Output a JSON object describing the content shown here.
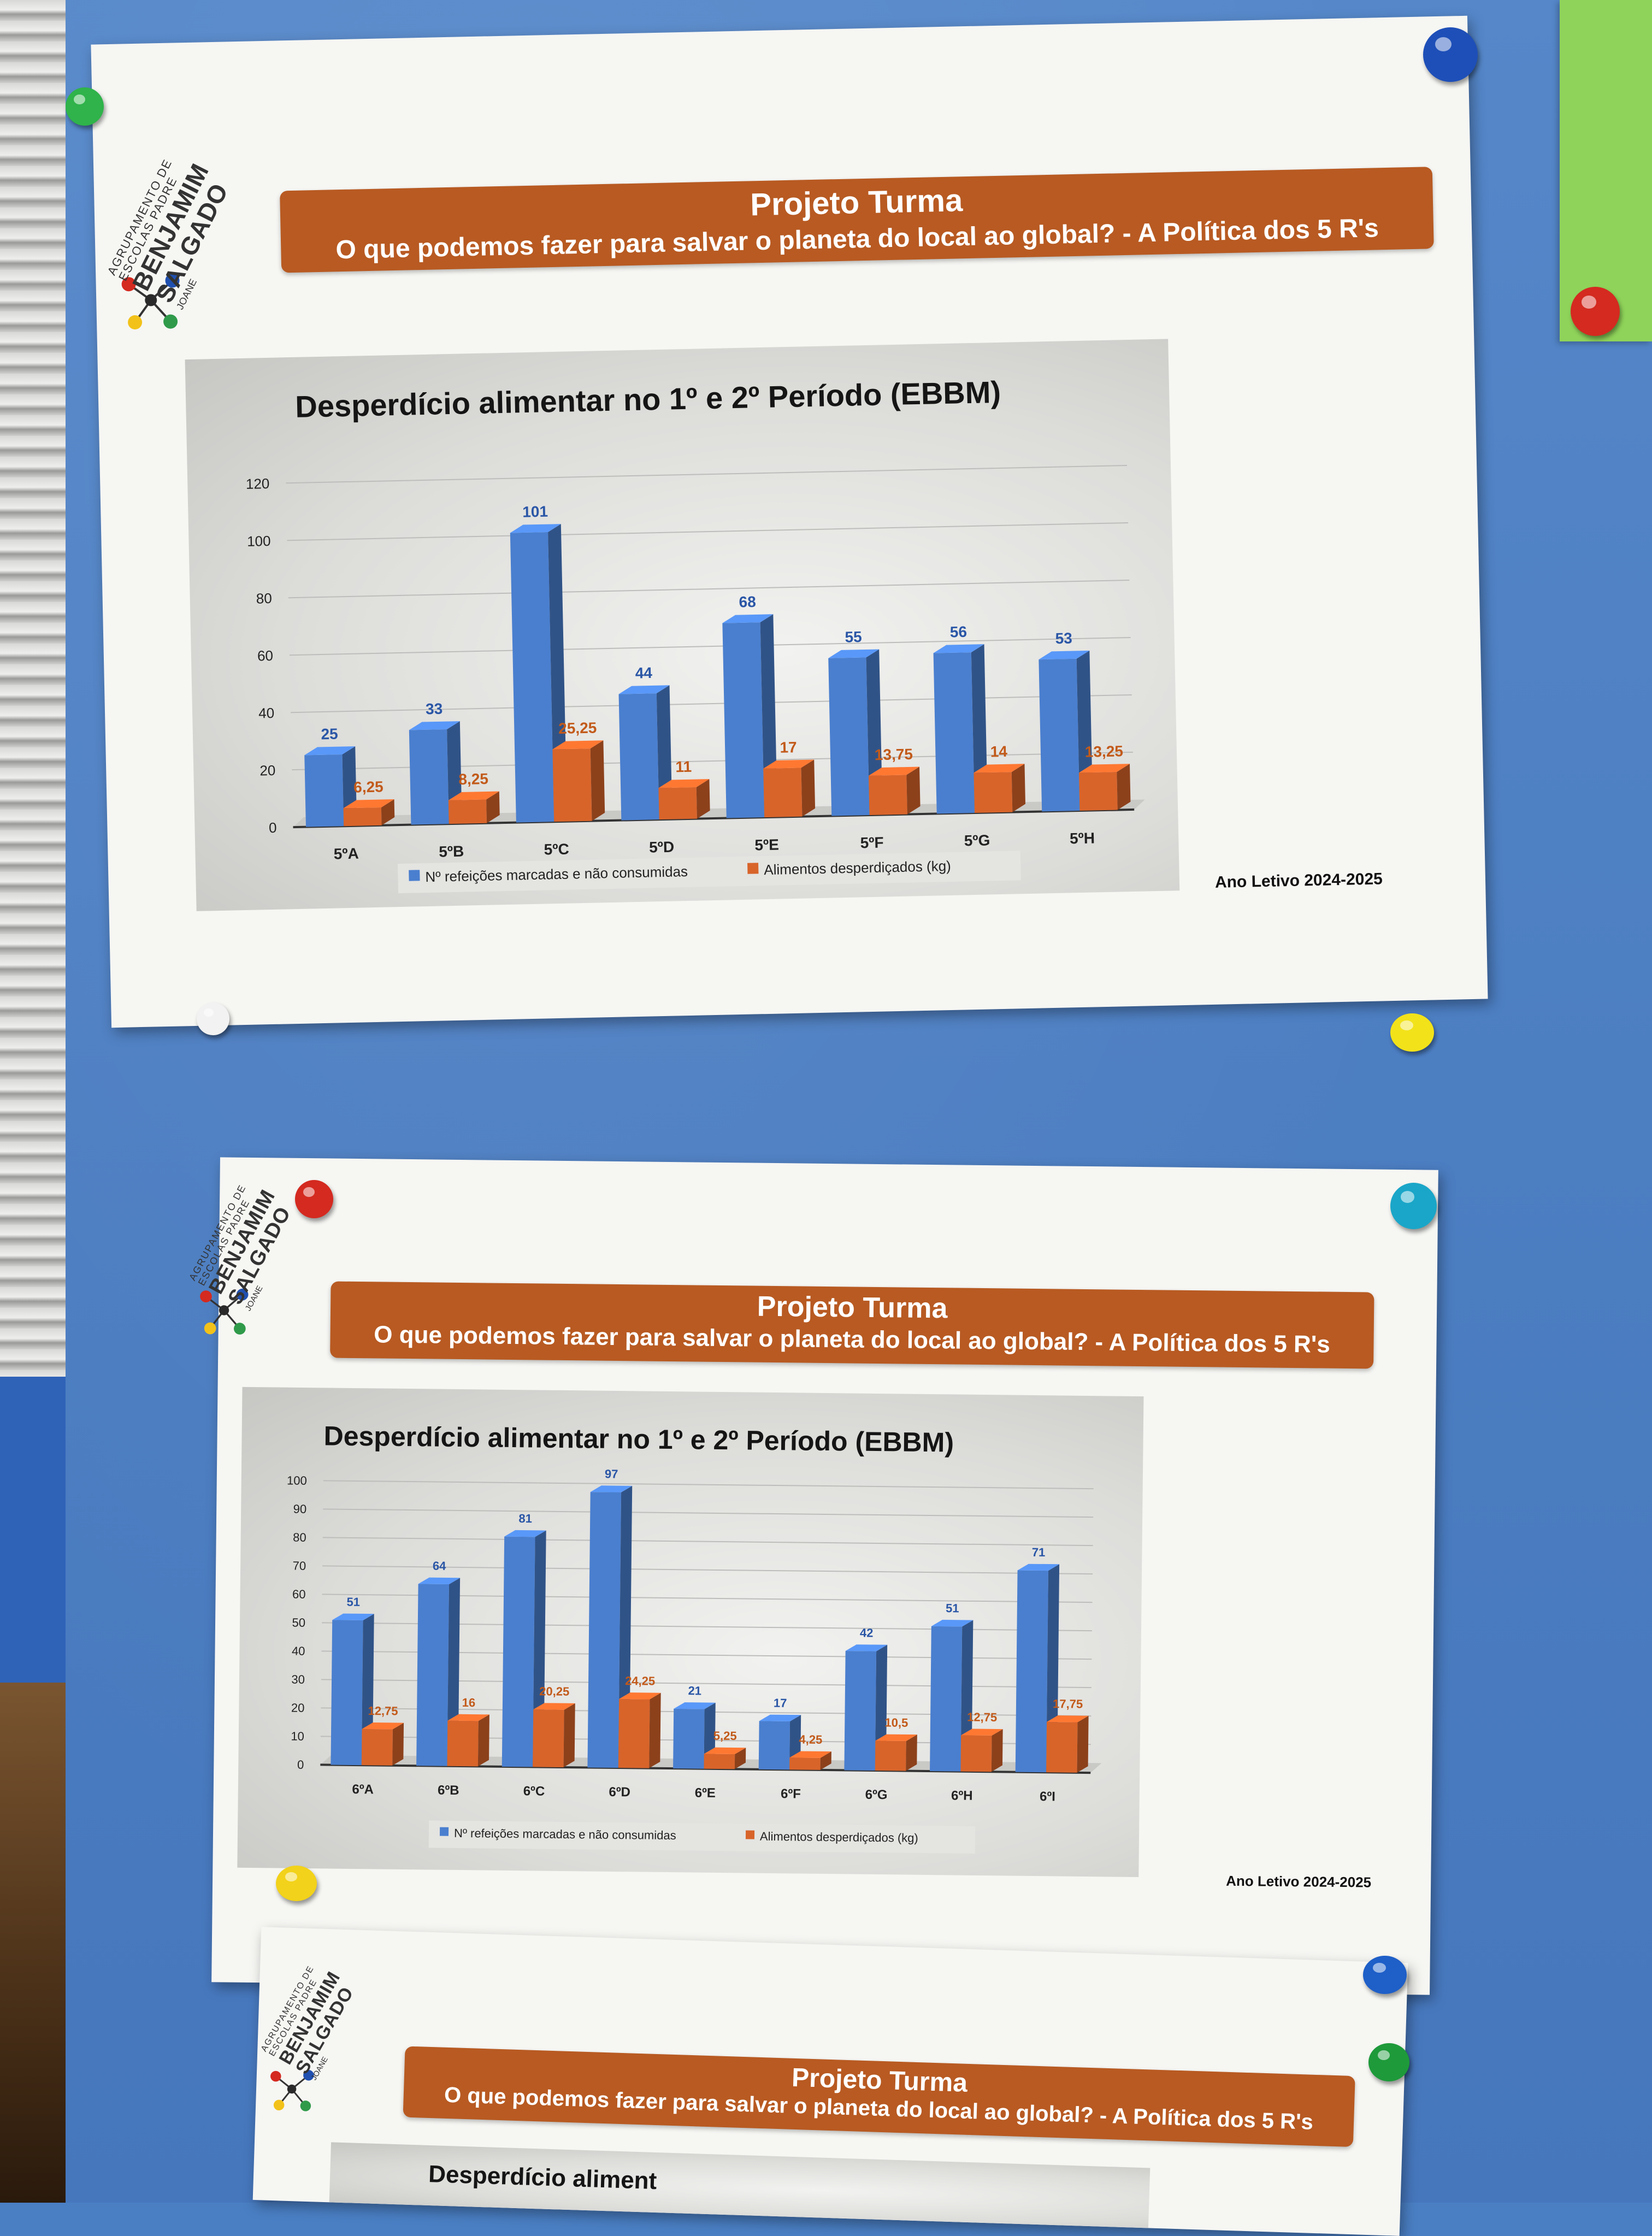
{
  "posters": [
    {
      "logo": {
        "line1": "AGRUPAMENTO DE",
        "line2": "ESCOLAS PADRE",
        "line3": "BENJAMIM",
        "line4": "SALGADO",
        "line5": "JOANE"
      },
      "banner": {
        "title": "Projeto Turma",
        "subtitle": "O que podemos fazer para salvar o planeta do local ao global? - A Política dos 5 R's"
      },
      "year": "Ano Letivo 2024-2025"
    },
    {
      "logo": {
        "line1": "AGRUPAMENTO DE",
        "line2": "ESCOLAS PADRE",
        "line3": "BENJAMIM",
        "line4": "SALGADO",
        "line5": "JOANE"
      },
      "banner": {
        "title": "Projeto Turma",
        "subtitle": "O que podemos fazer para salvar o planeta do local ao global? - A Política dos 5 R's"
      },
      "year": "Ano Letivo 2024-2025"
    },
    {
      "logo": {
        "line1": "AGRUPAMENTO DE",
        "line2": "ESCOLAS PADRE",
        "line3": "BENJAMIM",
        "line4": "SALGADO",
        "line5": "JOANE"
      },
      "banner": {
        "title": "Projeto Turma",
        "subtitle": "O que podemos fazer para salvar o planeta do local ao global? - A Política dos 5 R's"
      },
      "chart_title_partial": "Desperdício aliment"
    }
  ],
  "chart_data": [
    {
      "type": "bar",
      "title": "Desperdício alimentar no 1º e 2º Período (EBBM)",
      "categories": [
        "5ºA",
        "5ºB",
        "5ºC",
        "5ºD",
        "5ºE",
        "5ºF",
        "5ºG",
        "5ºH"
      ],
      "series": [
        {
          "name": "Nº refeições marcadas e não consumidas",
          "color": "#4a7fcf",
          "values": [
            25,
            33,
            101,
            44,
            68,
            55,
            56,
            53
          ],
          "labels": [
            "25",
            "33",
            "101",
            "44",
            "68",
            "55",
            "56",
            "53"
          ]
        },
        {
          "name": "Alimentos desperdiçados (kg)",
          "color": "#d8642a",
          "values": [
            6.25,
            8.25,
            25.25,
            11,
            17,
            13.75,
            14,
            13.25
          ],
          "labels": [
            "6,25",
            "8,25",
            "25,25",
            "11",
            "17",
            "13,75",
            "14",
            "13,25"
          ]
        }
      ],
      "ylim": [
        0,
        120
      ],
      "yticks": [
        "0",
        "20",
        "40",
        "60",
        "80",
        "100",
        "120"
      ],
      "legend_position": "bottom"
    },
    {
      "type": "bar",
      "title": "Desperdício alimentar no 1º e 2º Período (EBBM)",
      "categories": [
        "6ºA",
        "6ºB",
        "6ºC",
        "6ºD",
        "6ºE",
        "6ºF",
        "6ºG",
        "6ºH",
        "6ºI"
      ],
      "series": [
        {
          "name": "Nº refeições marcadas e não consumidas",
          "color": "#4a7fcf",
          "values": [
            51,
            64,
            81,
            97,
            21,
            17,
            42,
            51,
            71
          ],
          "labels": [
            "51",
            "64",
            "81",
            "97",
            "21",
            "17",
            "42",
            "51",
            "71"
          ]
        },
        {
          "name": "Alimentos desperdiçados (kg)",
          "color": "#d8642a",
          "values": [
            12.75,
            16,
            20.25,
            24.25,
            5.25,
            4.25,
            10.5,
            12.75,
            17.75
          ],
          "labels": [
            "12,75",
            "16",
            "20,25",
            "24,25",
            "5,25",
            "4,25",
            "10,5",
            "12,75",
            "17,75"
          ]
        }
      ],
      "ylim": [
        0,
        100
      ],
      "yticks": [
        "0",
        "10",
        "20",
        "30",
        "40",
        "50",
        "60",
        "70",
        "80",
        "90",
        "100"
      ],
      "legend_position": "bottom"
    }
  ],
  "pins": [
    {
      "color": "#2fb34a"
    },
    {
      "color": "#1e4fb8"
    },
    {
      "color": "#d42a20"
    },
    {
      "color": "#f2f2f2"
    },
    {
      "color": "#f2e21a"
    },
    {
      "color": "#d42a20"
    },
    {
      "color": "#1aa6c8"
    },
    {
      "color": "#f2d21a"
    },
    {
      "color": "#1e5fc8"
    },
    {
      "color": "#1e9a3a"
    }
  ]
}
